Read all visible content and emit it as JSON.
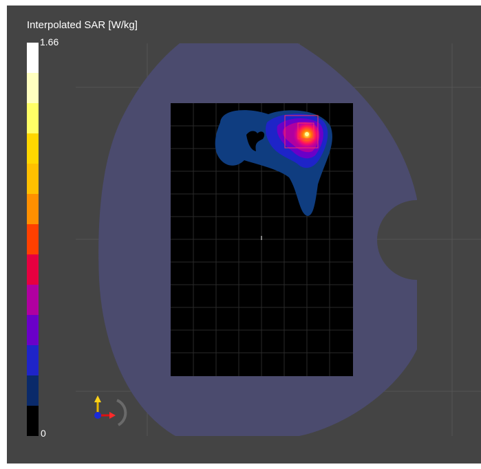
{
  "legend": {
    "title": "Interpolated SAR [W/kg]",
    "max_label": "1.66",
    "min_label": "0",
    "colors": [
      "#ffffff",
      "#ffffc0",
      "#ffff66",
      "#ffd700",
      "#ffc000",
      "#ff9000",
      "#ff4000",
      "#e60040",
      "#b000a0",
      "#6a00c8",
      "#1e24c8",
      "#0a2a6a",
      "#000000"
    ]
  },
  "colors": {
    "viewport_background": "#444444",
    "phantom": "#4b4b6e",
    "measurement_area": "#000000",
    "grid": "#5a5a5a",
    "peak_box": "#ff3060"
  },
  "icons": {
    "axes_triad": "axes-triad-icon",
    "center_marker": "center-marker-icon"
  }
}
